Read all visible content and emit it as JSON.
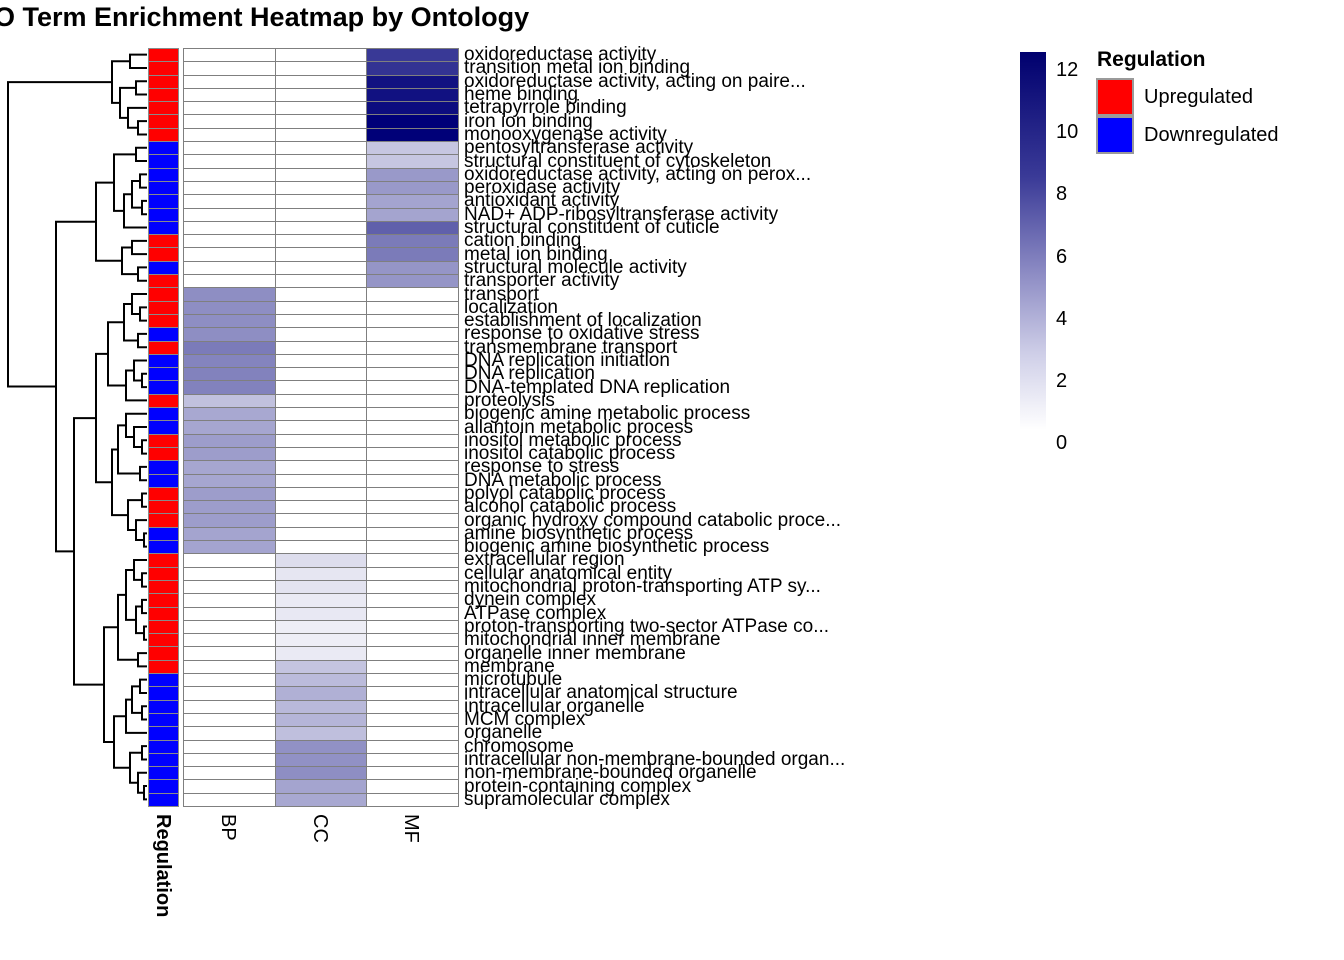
{
  "title": "GO Term Enrichment Heatmap by Ontology",
  "colorbar": {
    "ticks": [
      "12",
      "10",
      "8",
      "6",
      "4",
      "2",
      "0"
    ],
    "top_color": "#00006e",
    "bottom_color": "#ffffff"
  },
  "regulation_legend": {
    "title": "Regulation",
    "items": [
      {
        "label": "Upregulated",
        "color": "#ff0000"
      },
      {
        "label": "Downregulated",
        "color": "#0000ff"
      }
    ]
  },
  "chart_data": {
    "type": "heatmap",
    "title": "GO Term Enrichment Heatmap by Ontology",
    "columns": [
      "BP",
      "CC",
      "MF"
    ],
    "annotation_column_label": "Regulation",
    "value_range": [
      0,
      12
    ],
    "scale_colors": {
      "low": "#ffffff",
      "high": "#000078"
    },
    "regulation_colors": {
      "Upregulated": "#ff0000",
      "Downregulated": "#0000ff"
    },
    "legend_ticks": [
      12,
      10,
      8,
      6,
      4,
      2,
      0
    ],
    "rows": [
      {
        "label": "oxidoreductase activity",
        "regulation": "Upregulated",
        "BP": null,
        "CC": null,
        "MF": 9.3
      },
      {
        "label": "transition metal ion binding",
        "regulation": "Upregulated",
        "BP": null,
        "CC": null,
        "MF": 9.6
      },
      {
        "label": "oxidoreductase activity, acting on paire...",
        "regulation": "Upregulated",
        "BP": null,
        "CC": null,
        "MF": 11.2
      },
      {
        "label": "heme binding",
        "regulation": "Upregulated",
        "BP": null,
        "CC": null,
        "MF": 11.2
      },
      {
        "label": "tetrapyrrole binding",
        "regulation": "Upregulated",
        "BP": null,
        "CC": null,
        "MF": 11.4
      },
      {
        "label": "iron ion binding",
        "regulation": "Upregulated",
        "BP": null,
        "CC": null,
        "MF": 12
      },
      {
        "label": "monooxygenase activity",
        "regulation": "Upregulated",
        "BP": null,
        "CC": null,
        "MF": 12
      },
      {
        "label": "pentosyltransferase activity",
        "regulation": "Downregulated",
        "BP": null,
        "CC": null,
        "MF": 2.7
      },
      {
        "label": "structural constituent of cytoskeleton",
        "regulation": "Downregulated",
        "BP": null,
        "CC": null,
        "MF": 2.7
      },
      {
        "label": "oxidoreductase activity, acting on perox...",
        "regulation": "Downregulated",
        "BP": null,
        "CC": null,
        "MF": 4.8
      },
      {
        "label": "peroxidase activity",
        "regulation": "Downregulated",
        "BP": null,
        "CC": null,
        "MF": 4.8
      },
      {
        "label": "antioxidant activity",
        "regulation": "Downregulated",
        "BP": null,
        "CC": null,
        "MF": 4.3
      },
      {
        "label": "NAD+ ADP-ribosyltransferase activity",
        "regulation": "Downregulated",
        "BP": null,
        "CC": null,
        "MF": 4.3
      },
      {
        "label": "structural constituent of cuticle",
        "regulation": "Downregulated",
        "BP": null,
        "CC": null,
        "MF": 7.5
      },
      {
        "label": "cation binding",
        "regulation": "Upregulated",
        "BP": null,
        "CC": null,
        "MF": 6.2
      },
      {
        "label": "metal ion binding",
        "regulation": "Upregulated",
        "BP": null,
        "CC": null,
        "MF": 6.2
      },
      {
        "label": "structural molecule activity",
        "regulation": "Downregulated",
        "BP": null,
        "CC": null,
        "MF": 5.0
      },
      {
        "label": "transporter activity",
        "regulation": "Upregulated",
        "BP": null,
        "CC": null,
        "MF": 5.0
      },
      {
        "label": "transport",
        "regulation": "Upregulated",
        "BP": 5.3,
        "CC": null,
        "MF": null
      },
      {
        "label": "localization",
        "regulation": "Upregulated",
        "BP": 5.3,
        "CC": null,
        "MF": null
      },
      {
        "label": "establishment of localization",
        "regulation": "Upregulated",
        "BP": 5.3,
        "CC": null,
        "MF": null
      },
      {
        "label": "response to oxidative stress",
        "regulation": "Downregulated",
        "BP": 5.3,
        "CC": null,
        "MF": null
      },
      {
        "label": "transmembrane transport",
        "regulation": "Upregulated",
        "BP": 6.2,
        "CC": null,
        "MF": null
      },
      {
        "label": "DNA replication initiation",
        "regulation": "Downregulated",
        "BP": 5.8,
        "CC": null,
        "MF": null
      },
      {
        "label": "DNA replication",
        "regulation": "Downregulated",
        "BP": 5.9,
        "CC": null,
        "MF": null
      },
      {
        "label": "DNA-templated DNA replication",
        "regulation": "Downregulated",
        "BP": 5.9,
        "CC": null,
        "MF": null
      },
      {
        "label": "proteolysis",
        "regulation": "Upregulated",
        "BP": 2.9,
        "CC": null,
        "MF": null
      },
      {
        "label": "biogenic amine metabolic process",
        "regulation": "Downregulated",
        "BP": 4.1,
        "CC": null,
        "MF": null
      },
      {
        "label": "allantoin metabolic process",
        "regulation": "Downregulated",
        "BP": 4.2,
        "CC": null,
        "MF": null
      },
      {
        "label": "inositol metabolic process",
        "regulation": "Upregulated",
        "BP": 4.6,
        "CC": null,
        "MF": null
      },
      {
        "label": "inositol catabolic process",
        "regulation": "Upregulated",
        "BP": 4.6,
        "CC": null,
        "MF": null
      },
      {
        "label": "response to stress",
        "regulation": "Downregulated",
        "BP": 4.2,
        "CC": null,
        "MF": null
      },
      {
        "label": "DNA metabolic process",
        "regulation": "Downregulated",
        "BP": 4.2,
        "CC": null,
        "MF": null
      },
      {
        "label": "polyol catabolic process",
        "regulation": "Upregulated",
        "BP": 4.6,
        "CC": null,
        "MF": null
      },
      {
        "label": "alcohol catabolic process",
        "regulation": "Upregulated",
        "BP": 4.6,
        "CC": null,
        "MF": null
      },
      {
        "label": "organic hydroxy compound catabolic proce...",
        "regulation": "Upregulated",
        "BP": 4.6,
        "CC": null,
        "MF": null
      },
      {
        "label": "amine biosynthetic process",
        "regulation": "Downregulated",
        "BP": 4.3,
        "CC": null,
        "MF": null
      },
      {
        "label": "biogenic amine biosynthetic process",
        "regulation": "Downregulated",
        "BP": 4.3,
        "CC": null,
        "MF": null
      },
      {
        "label": "extracellular region",
        "regulation": "Upregulated",
        "BP": null,
        "CC": 1.6,
        "MF": null
      },
      {
        "label": "cellular anatomical entity",
        "regulation": "Upregulated",
        "BP": null,
        "CC": 1.2,
        "MF": null
      },
      {
        "label": "mitochondrial proton-transporting ATP sy...",
        "regulation": "Upregulated",
        "BP": null,
        "CC": 1.3,
        "MF": null
      },
      {
        "label": "dynein complex",
        "regulation": "Upregulated",
        "BP": null,
        "CC": 1.0,
        "MF": null
      },
      {
        "label": "ATPase complex",
        "regulation": "Upregulated",
        "BP": null,
        "CC": 1.1,
        "MF": null
      },
      {
        "label": "proton-transporting two-sector ATPase co...",
        "regulation": "Upregulated",
        "BP": null,
        "CC": 0.8,
        "MF": null
      },
      {
        "label": "mitochondrial inner membrane",
        "regulation": "Upregulated",
        "BP": null,
        "CC": 0.8,
        "MF": null
      },
      {
        "label": "organelle inner membrane",
        "regulation": "Upregulated",
        "BP": null,
        "CC": 1.0,
        "MF": null
      },
      {
        "label": "membrane",
        "regulation": "Upregulated",
        "BP": null,
        "CC": 2.8,
        "MF": null
      },
      {
        "label": "microtubule",
        "regulation": "Downregulated",
        "BP": null,
        "CC": 3.2,
        "MF": null
      },
      {
        "label": "intracellular anatomical structure",
        "regulation": "Downregulated",
        "BP": null,
        "CC": 3.7,
        "MF": null
      },
      {
        "label": "intracellular organelle",
        "regulation": "Downregulated",
        "BP": null,
        "CC": 3.3,
        "MF": null
      },
      {
        "label": "MCM complex",
        "regulation": "Downregulated",
        "BP": null,
        "CC": 3.5,
        "MF": null
      },
      {
        "label": "organelle",
        "regulation": "Downregulated",
        "BP": null,
        "CC": 3.0,
        "MF": null
      },
      {
        "label": "chromosome",
        "regulation": "Downregulated",
        "BP": null,
        "CC": 5.2,
        "MF": null
      },
      {
        "label": "intracellular non-membrane-bounded organ...",
        "regulation": "Downregulated",
        "BP": null,
        "CC": 5.2,
        "MF": null
      },
      {
        "label": "non-membrane-bounded organelle",
        "regulation": "Downregulated",
        "BP": null,
        "CC": 5.3,
        "MF": null
      },
      {
        "label": "protein-containing complex",
        "regulation": "Downregulated",
        "BP": null,
        "CC": 4.3,
        "MF": null
      },
      {
        "label": "supramolecular complex",
        "regulation": "Downregulated",
        "BP": null,
        "CC": 4.1,
        "MF": null
      }
    ],
    "row_dendrogram": [
      [
        [
          0,
          1,
          130
        ],
        [
          [
            2,
            3,
            136
          ],
          [
            4,
            [
              5,
              6,
              138
            ],
            128
          ],
          120
        ],
        112
      ],
      [
        [
          [
            [
              7,
              8,
              136
            ],
            [
              [
                [
                  9,
                  10,
                  140
                ],
                [
                  11,
                  12,
                  142
                ],
                132
              ],
              13,
              124
            ],
            114
          ],
          [
            [
              14,
              15,
              132
            ],
            [
              16,
              17,
              138
            ],
            122
          ],
          96
        ],
        [
          [
            [
              [
                [
                  18,
                  [
                    19,
                    20,
                    140
                  ],
                  132
                ],
                [
                  21,
                  22,
                  138
                ],
                124
              ],
              [
                [
                  23,
                  [
                    24,
                    25,
                    142
                  ],
                  134
                ],
                26,
                126
              ],
              108
            ],
            [
              [
                [
                  27,
                  [
                    28,
                    [
                      29,
                      30,
                      142
                    ],
                    134
                  ],
                  126
                ],
                [
                  31,
                  32,
                  140
                ],
                118
              ],
              [
                [
                  33,
                  34,
                  142
                ],
                [
                  35,
                  [
                    36,
                    37,
                    144
                  ],
                  136
                ],
                128
              ],
              112
            ],
            96
          ],
          [
            [
              [
                [
                  38,
                  [
                    39,
                    40,
                    142
                  ],
                  134
                ],
                [
                  [
                    41,
                    42,
                    142
                  ],
                  [
                    43,
                    44,
                    144
                  ],
                  136
                ],
                126
              ],
              [
                45,
                46,
                138
              ],
              118
            ],
            [
              [
                [
                  [
                    47,
                    48,
                    140
                  ],
                  [
                    49,
                    50,
                    142
                  ],
                  132
                ],
                51,
                126
              ],
              [
                [
                  52,
                  53,
                  142
                ],
                [
                  54,
                  [
                    55,
                    56,
                    144
                  ],
                  138
                ],
                130
              ],
              114
            ],
            104
          ],
          74
        ],
        56
      ],
      8
    ]
  }
}
